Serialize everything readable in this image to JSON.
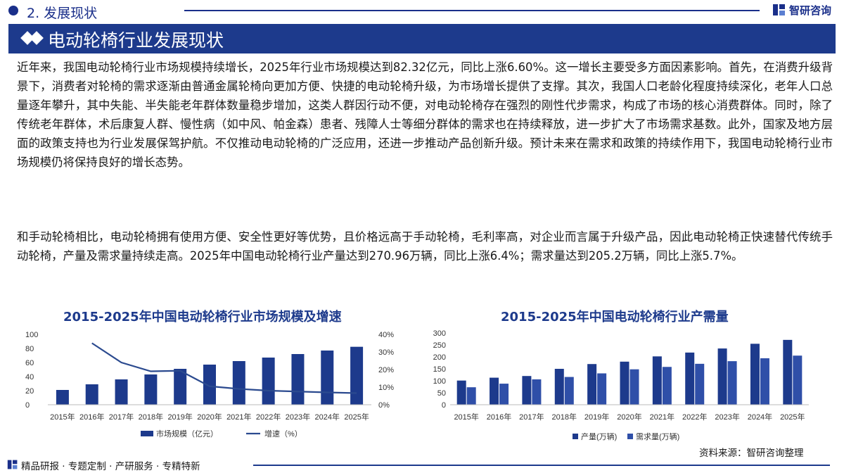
{
  "header": {
    "section_title": "2. 发展现状",
    "brand": "智研咨询"
  },
  "banner": {
    "title": "电动轮椅行业发展现状"
  },
  "paragraphs": {
    "p1": "近年来，我国电动轮椅行业市场规模持续增长，2025年行业市场规模达到82.32亿元，同比上涨6.60%。这一增长主要受多方面因素影响。首先，在消费升级背景下，消费者对轮椅的需求逐渐由普通金属轮椅向更加方便、快捷的电动轮椅升级，为市场增长提供了支撑。其次，我国人口老龄化程度持续深化，老年人口总量逐年攀升，其中失能、半失能老年群体数量稳步增加，这类人群因行动不便，对电动轮椅存在强烈的刚性代步需求，构成了市场的核心消费群体。同时，除了传统老年群体，术后康复人群、慢性病（如中风、帕金森）患者、残障人士等细分群体的需求也在持续释放，进一步扩大了市场需求基数。此外，国家及地方层面的政策支持也为行业发展保驾护航。不仅推动电动轮椅的广泛应用，还进一步推动产品创新升级。预计未来在需求和政策的持续作用下，我国电动轮椅行业市场规模仍将保持良好的增长态势。",
    "p2": "和手动轮椅相比，电动轮椅拥有使用方便、安全性更好等优势，且价格远高于手动轮椅，毛利率高，对企业而言属于升级产品，因此电动轮椅正快速替代传统手动轮椅，产量及需求量持续走高。2025年中国电动轮椅行业产量达到270.96万辆，同比上涨6.4%；需求量达到205.2万辆，同比上涨5.7%。"
  },
  "footer": {
    "source": "资料来源：智研咨询整理",
    "tagline": "精品研报 · 专题定制 · 产研服务 · 专精特新"
  },
  "colors": {
    "brand": "#1d3a8c",
    "bar_dark": "#1d3a8c",
    "bar_light": "#2f4fa8",
    "line": "#2b4a8f"
  },
  "chart_data": [
    {
      "type": "bar",
      "title": "2015-2025年中国电动轮椅行业市场规模及增速",
      "categories": [
        "2015年",
        "2016年",
        "2017年",
        "2018年",
        "2019年",
        "2020年",
        "2021年",
        "2022年",
        "2023年",
        "2024年",
        "2025年"
      ],
      "y_ticks": [
        "0",
        "20",
        "40",
        "60",
        "80",
        "100"
      ],
      "y2_ticks": [
        "0%",
        "10%",
        "20%",
        "30%",
        "40%"
      ],
      "ylim": [
        0,
        100
      ],
      "y2lim": [
        0,
        40
      ],
      "series": [
        {
          "name": "市场规模（亿元）",
          "type": "bar",
          "values": [
            21,
            29,
            36,
            43,
            51,
            57,
            62,
            67,
            72,
            77,
            82.32
          ]
        },
        {
          "name": "增速（%）",
          "type": "line",
          "axis": "right",
          "values": [
            null,
            35,
            24,
            19,
            19.3,
            10.5,
            9,
            8,
            7.5,
            7,
            6.6
          ]
        }
      ],
      "legend": "bottom"
    },
    {
      "type": "bar",
      "title": "2015-2025年中国电动轮椅行业产需量",
      "categories": [
        "2015年",
        "2016年",
        "2017年",
        "2018年",
        "2019年",
        "2020年",
        "2021年",
        "2022年",
        "2023年",
        "2024年",
        "2025年"
      ],
      "y_ticks": [
        "0",
        "50",
        "100",
        "150",
        "200",
        "250",
        "300"
      ],
      "ylim": [
        0,
        300
      ],
      "series": [
        {
          "name": "产量(万辆)",
          "values": [
            101,
            113,
            120,
            150,
            170,
            180,
            202,
            218,
            235,
            254.7,
            270.96
          ]
        },
        {
          "name": "需求量(万辆)",
          "values": [
            73,
            88,
            106,
            116,
            131,
            148,
            158,
            171,
            182,
            194.1,
            205.2
          ]
        }
      ],
      "legend": "bottom"
    }
  ]
}
